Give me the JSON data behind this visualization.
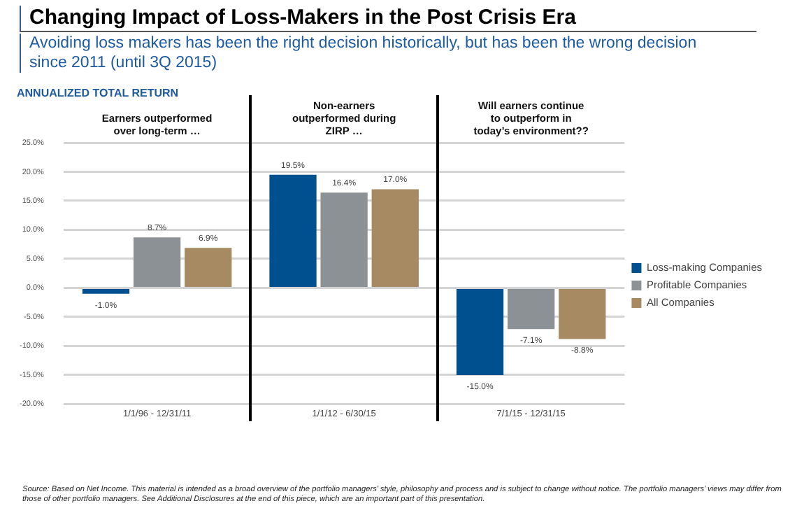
{
  "chart_data": {
    "type": "bar",
    "title": "Changing Impact of Loss-Makers in the Post Crisis Era",
    "subtitle": "Avoiding loss makers has been the right decision historically, but has been the wrong decision since 2011 (until 3Q 2015)",
    "ylabel": "ANNUALIZED TOTAL RETURN",
    "categories": [
      "1/1/96 - 12/31/11",
      "1/1/12 - 6/30/15",
      "7/1/15 - 12/31/15"
    ],
    "series": [
      {
        "name": "Loss-making Companies",
        "color": "#00508f",
        "values": [
          -1.0,
          19.5,
          -15.0
        ],
        "value_labels": [
          "-1.0%",
          "19.5%",
          "-15.0%"
        ]
      },
      {
        "name": "Profitable Companies",
        "color": "#8c9196",
        "values": [
          8.7,
          16.4,
          -7.1
        ],
        "value_labels": [
          "8.7%",
          "16.4%",
          "-7.1%"
        ]
      },
      {
        "name": "All Companies",
        "color": "#a88a62",
        "values": [
          6.9,
          17.0,
          -8.8
        ],
        "value_labels": [
          "6.9%",
          "17.0%",
          "-8.8%"
        ]
      }
    ],
    "ylim": [
      -20,
      25
    ],
    "yticks": [
      {
        "value": -20,
        "label": "-20.0%"
      },
      {
        "value": -15,
        "label": "-15.0%"
      },
      {
        "value": -10,
        "label": "-10.0%"
      },
      {
        "value": -5,
        "label": "-5.0%"
      },
      {
        "value": 0,
        "label": "0.0%"
      },
      {
        "value": 5,
        "label": "5.0%"
      },
      {
        "value": 10,
        "label": "10.0%"
      },
      {
        "value": 15,
        "label": "15.0%"
      },
      {
        "value": 20,
        "label": "20.0%"
      },
      {
        "value": 25,
        "label": "25.0%"
      }
    ],
    "grid": "y",
    "legend": "right",
    "annotations": [
      "Earners outperformed over long-term …",
      "Non-earners outperformed during ZIRP …",
      "Will earners continue to outperform in today’s environment??",
      "Source: Based on Net Income. This material is intended as a broad overview of the portfolio managers’ style, philosophy and process and is subject to change without notice. The portfolio managers’ views may differ from those of other portfolio managers. See Additional Disclosures at the end of this piece, which are an important part of this presentation."
    ]
  }
}
